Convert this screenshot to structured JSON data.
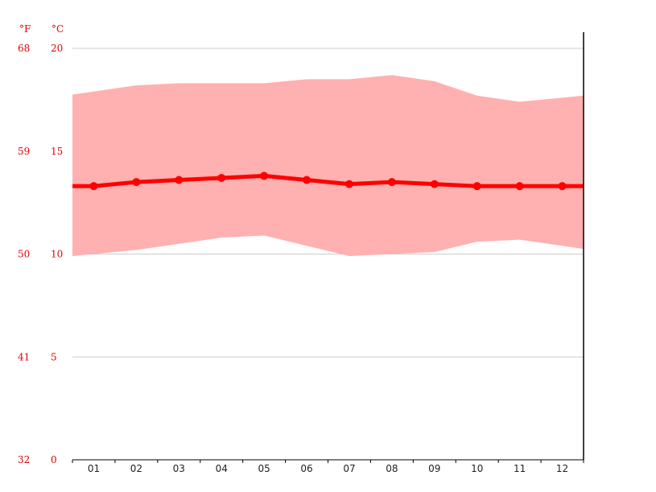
{
  "chart_data": {
    "type": "line",
    "units": {
      "fahrenheit": "°F",
      "celsius": "°C"
    },
    "x": [
      "01",
      "02",
      "03",
      "04",
      "05",
      "06",
      "07",
      "08",
      "09",
      "10",
      "11",
      "12"
    ],
    "ylim": [
      0,
      20
    ],
    "y_ticks_c": [
      0,
      5,
      10,
      15,
      20
    ],
    "y_ticks_f": [
      32,
      41,
      50,
      59,
      68
    ],
    "grid": true,
    "series": [
      {
        "role": "average",
        "color": "#ff0000",
        "values": [
          13.3,
          13.5,
          13.6,
          13.7,
          13.8,
          13.6,
          13.4,
          13.5,
          13.4,
          13.3,
          13.3,
          13.3
        ]
      },
      {
        "role": "max",
        "color": "#ffb0b0",
        "values": [
          17.9,
          18.2,
          18.3,
          18.3,
          18.3,
          18.5,
          18.5,
          18.7,
          18.4,
          17.7,
          17.4,
          17.6
        ]
      },
      {
        "role": "min",
        "color": "#ffb0b0",
        "values": [
          10.0,
          10.2,
          10.5,
          10.8,
          10.9,
          10.4,
          9.9,
          10.0,
          10.1,
          10.6,
          10.7,
          10.4
        ]
      }
    ]
  }
}
